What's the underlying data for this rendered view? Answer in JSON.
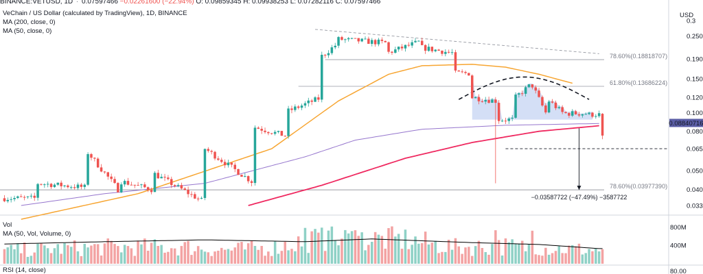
{
  "header": {
    "symbol": "BINANCE:VETUSD, 1D",
    "last": "0.07597466",
    "change": "−0.02261600 (−22.94%)",
    "open": "O: 0.09859345",
    "high": "H: 0.09938253",
    "low": "L: 0.07282116",
    "close": "C: 0.07597466"
  },
  "legend": {
    "title": "VeChain / US Dollar (calculated by TradingView), 1D, BINANCE",
    "ma200": "MA (200, close, 0)",
    "ma50": "MA (50, close, 0)"
  },
  "volume_legend": {
    "title": "Vol",
    "ma": "MA (50, Vol, Volume, 0)"
  },
  "rsi_legend": {
    "title": "RSI (14, close)"
  },
  "colors": {
    "up": "#26a69a",
    "down": "#ef5350",
    "ma50": "#f7a531",
    "ma200": "#9575cd",
    "support": "#ef2960",
    "fill": "#b7c9f0",
    "ma_vol": "#000000",
    "price_tag": "#5b5ea6"
  },
  "chart_data": {
    "type": "candlestick",
    "y_scale": "log",
    "y_ticks": [
      "0.3",
      "0.25000000",
      "0.19000000",
      "0.15000000",
      "0.12000000",
      "0.10000000",
      "0.08000000",
      "0.06500000",
      "0.05000000",
      "0.04000000",
      "0.03300000"
    ],
    "y_tick_values": [
      0.3,
      0.25,
      0.19,
      0.15,
      0.12,
      0.1,
      0.08,
      0.065,
      0.05,
      0.04,
      0.033
    ],
    "current_price": "0.08840716",
    "usd_label": "USD",
    "fib_levels": [
      {
        "label": "78.60%(0.18818707)",
        "value": 0.18818707
      },
      {
        "label": "61.80%(0.13686224)",
        "value": 0.13686224
      },
      {
        "label": "78.60%(0.03977390)",
        "value": 0.0397739
      }
    ],
    "measure_label": "−0.03587722 (−47.49%) −3587722",
    "target_level": 0.065,
    "volume_ticks": [
      "800M",
      "400M"
    ],
    "volume_tick_values": [
      800,
      400
    ],
    "rsi_ticks": [
      "80.00"
    ],
    "segments": [
      [
        0,
        0.036,
        0.036
      ],
      [
        10,
        0.043,
        0.041
      ],
      [
        25,
        0.062,
        0.04
      ],
      [
        35,
        0.044,
        0.04
      ],
      [
        45,
        0.048,
        0.035
      ],
      [
        60,
        0.065,
        0.044
      ],
      [
        75,
        0.084,
        0.076
      ],
      [
        85,
        0.102,
        0.118
      ],
      [
        95,
        0.196,
        0.223
      ],
      [
        100,
        0.24,
        0.23
      ],
      [
        115,
        0.205,
        0.232
      ],
      [
        125,
        0.217,
        0.204
      ],
      [
        135,
        0.16,
        0.16
      ],
      [
        140,
        0.12,
        0.115
      ],
      [
        148,
        0.092,
        0.092
      ],
      [
        153,
        0.12,
        0.137
      ],
      [
        158,
        0.138,
        0.1
      ],
      [
        163,
        0.115,
        0.1
      ],
      [
        168,
        0.099,
        0.099
      ],
      [
        175,
        0.0976,
        0.098
      ],
      [
        178,
        0.0976,
        0.076
      ]
    ],
    "ma50_points": [
      [
        5,
        0.028
      ],
      [
        40,
        0.038
      ],
      [
        80,
        0.065
      ],
      [
        100,
        0.115
      ],
      [
        115,
        0.158
      ],
      [
        125,
        0.175
      ],
      [
        140,
        0.178
      ],
      [
        150,
        0.172
      ],
      [
        160,
        0.158
      ],
      [
        170,
        0.142
      ]
    ],
    "ma200_points": [
      [
        5,
        0.033
      ],
      [
        30,
        0.038
      ],
      [
        60,
        0.043
      ],
      [
        90,
        0.059
      ],
      [
        105,
        0.072
      ],
      [
        125,
        0.082
      ],
      [
        150,
        0.086
      ],
      [
        178,
        0.0878
      ]
    ],
    "support_points": [
      [
        73,
        0.033
      ],
      [
        95,
        0.042
      ],
      [
        120,
        0.058
      ],
      [
        140,
        0.07
      ],
      [
        160,
        0.08
      ],
      [
        178,
        0.0855
      ]
    ],
    "trend_line": [
      [
        93,
        0.27
      ],
      [
        178,
        0.202
      ]
    ],
    "vol_segments": [
      [
        0,
        280
      ],
      [
        12,
        320
      ],
      [
        30,
        360
      ],
      [
        55,
        360
      ],
      [
        65,
        300
      ],
      [
        80,
        350
      ],
      [
        92,
        520
      ],
      [
        105,
        540
      ],
      [
        120,
        520
      ],
      [
        135,
        360
      ],
      [
        150,
        380
      ],
      [
        168,
        320
      ],
      [
        178,
        300
      ]
    ],
    "vol_ma": [
      [
        0,
        430
      ],
      [
        30,
        480
      ],
      [
        60,
        520
      ],
      [
        90,
        480
      ],
      [
        110,
        540
      ],
      [
        140,
        460
      ],
      [
        160,
        420
      ],
      [
        178,
        330
      ]
    ]
  }
}
